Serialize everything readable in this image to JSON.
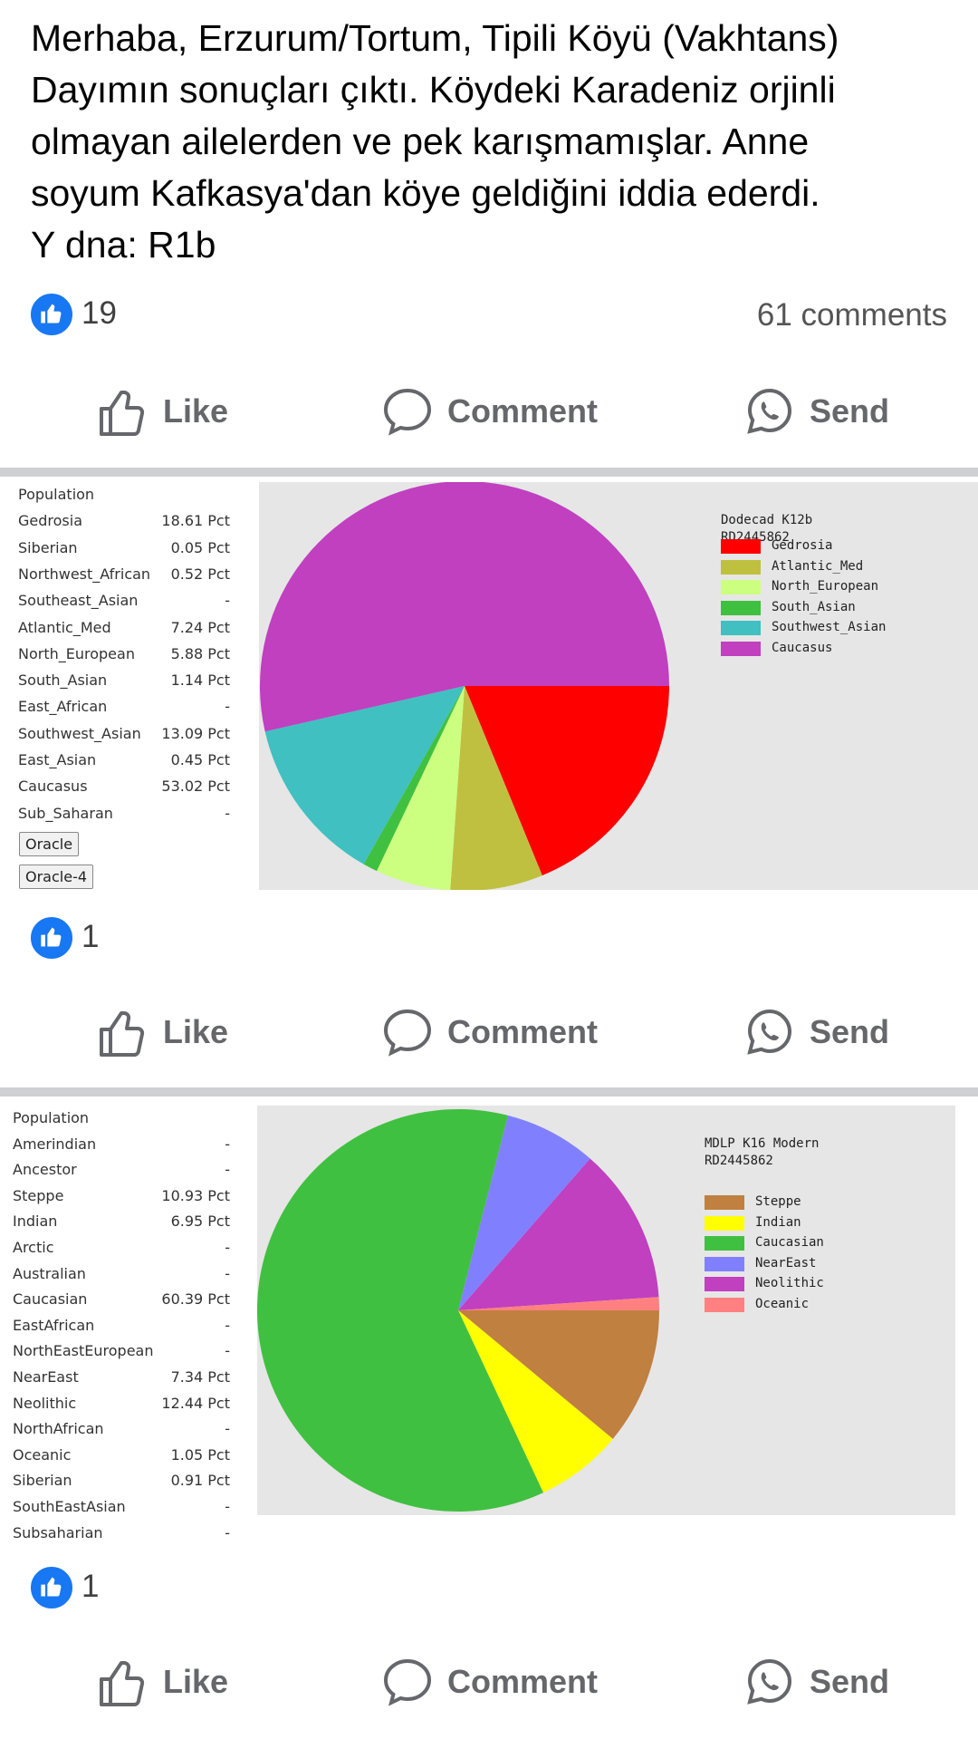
{
  "post": {
    "lines": [
      "Merhaba, Erzurum/Tortum, Tipili Köyü (Vakhtans)",
      "Dayımın sonuçları çıktı. Köydeki Karadeniz orjinli",
      "olmayan ailelerden ve pek karışmamışlar. Anne",
      "soyum Kafkasya'dan köye geldiğini iddia ederdi.",
      "Y dna: R1b"
    ],
    "likes": "19",
    "comments": "61 comments"
  },
  "actions": {
    "like": "Like",
    "comment": "Comment",
    "send": "Send"
  },
  "icons": {
    "like": "thumbs-up-icon",
    "comment": "speech-bubble-icon",
    "send": "whatsapp-icon"
  },
  "colors": {
    "fb_blue": "#1877f2",
    "action_gray": "#65676b"
  },
  "photo1": {
    "likes": "1",
    "population_header": "Population",
    "populations": [
      {
        "name": "Gedrosia",
        "value": "18.61 Pct"
      },
      {
        "name": "Siberian",
        "value": "0.05 Pct"
      },
      {
        "name": "Northwest_African",
        "value": "0.52 Pct"
      },
      {
        "name": "Southeast_Asian",
        "value": "-"
      },
      {
        "name": "Atlantic_Med",
        "value": "7.24 Pct"
      },
      {
        "name": "North_European",
        "value": "5.88 Pct"
      },
      {
        "name": "South_Asian",
        "value": "1.14 Pct"
      },
      {
        "name": "East_African",
        "value": "-"
      },
      {
        "name": "Southwest_Asian",
        "value": "13.09 Pct"
      },
      {
        "name": "East_Asian",
        "value": "0.45 Pct"
      },
      {
        "name": "Caucasus",
        "value": "53.02 Pct"
      },
      {
        "name": "Sub_Saharan",
        "value": "-"
      }
    ],
    "buttons": [
      "Oracle",
      "Oracle-4"
    ],
    "chart_data": {
      "type": "pie",
      "title": "Dodecad K12b",
      "subtitle": "RD2445862",
      "legend_position": "top-right",
      "slices": [
        {
          "name": "Gedrosia",
          "value": 18.61,
          "color": "#ff0000"
        },
        {
          "name": "Atlantic_Med",
          "value": 7.24,
          "color": "#c0c040"
        },
        {
          "name": "North_European",
          "value": 5.88,
          "color": "#ccff80"
        },
        {
          "name": "South_Asian",
          "value": 1.14,
          "color": "#40c040"
        },
        {
          "name": "Southwest_Asian",
          "value": 13.09,
          "color": "#40c0c0"
        },
        {
          "name": "Caucasus",
          "value": 53.02,
          "color": "#c040c0"
        }
      ]
    }
  },
  "photo2": {
    "likes": "1",
    "population_header": "Population",
    "populations": [
      {
        "name": "Amerindian",
        "value": "-"
      },
      {
        "name": "Ancestor",
        "value": "-"
      },
      {
        "name": "Steppe",
        "value": "10.93 Pct"
      },
      {
        "name": "Indian",
        "value": "6.95 Pct"
      },
      {
        "name": "Arctic",
        "value": "-"
      },
      {
        "name": "Australian",
        "value": "-"
      },
      {
        "name": "Caucasian",
        "value": "60.39 Pct"
      },
      {
        "name": "EastAfrican",
        "value": "-"
      },
      {
        "name": "NorthEastEuropean",
        "value": "-"
      },
      {
        "name": "NearEast",
        "value": "7.34 Pct"
      },
      {
        "name": "Neolithic",
        "value": "12.44 Pct"
      },
      {
        "name": "NorthAfrican",
        "value": "-"
      },
      {
        "name": "Oceanic",
        "value": "1.05 Pct"
      },
      {
        "name": "Siberian",
        "value": "0.91 Pct"
      },
      {
        "name": "SouthEastAsian",
        "value": "-"
      },
      {
        "name": "Subsaharian",
        "value": "-"
      }
    ],
    "chart_data": {
      "type": "pie",
      "title": "MDLP K16 Modern",
      "subtitle": "RD2445862",
      "legend_position": "top-right",
      "slices": [
        {
          "name": "Steppe",
          "value": 10.93,
          "color": "#c08040"
        },
        {
          "name": "Indian",
          "value": 6.95,
          "color": "#ffff00"
        },
        {
          "name": "Caucasian",
          "value": 60.39,
          "color": "#40c040"
        },
        {
          "name": "NearEast",
          "value": 7.34,
          "color": "#8080ff"
        },
        {
          "name": "Neolithic",
          "value": 12.44,
          "color": "#c040c0"
        },
        {
          "name": "Oceanic",
          "value": 1.05,
          "color": "#ff8080"
        }
      ]
    }
  }
}
